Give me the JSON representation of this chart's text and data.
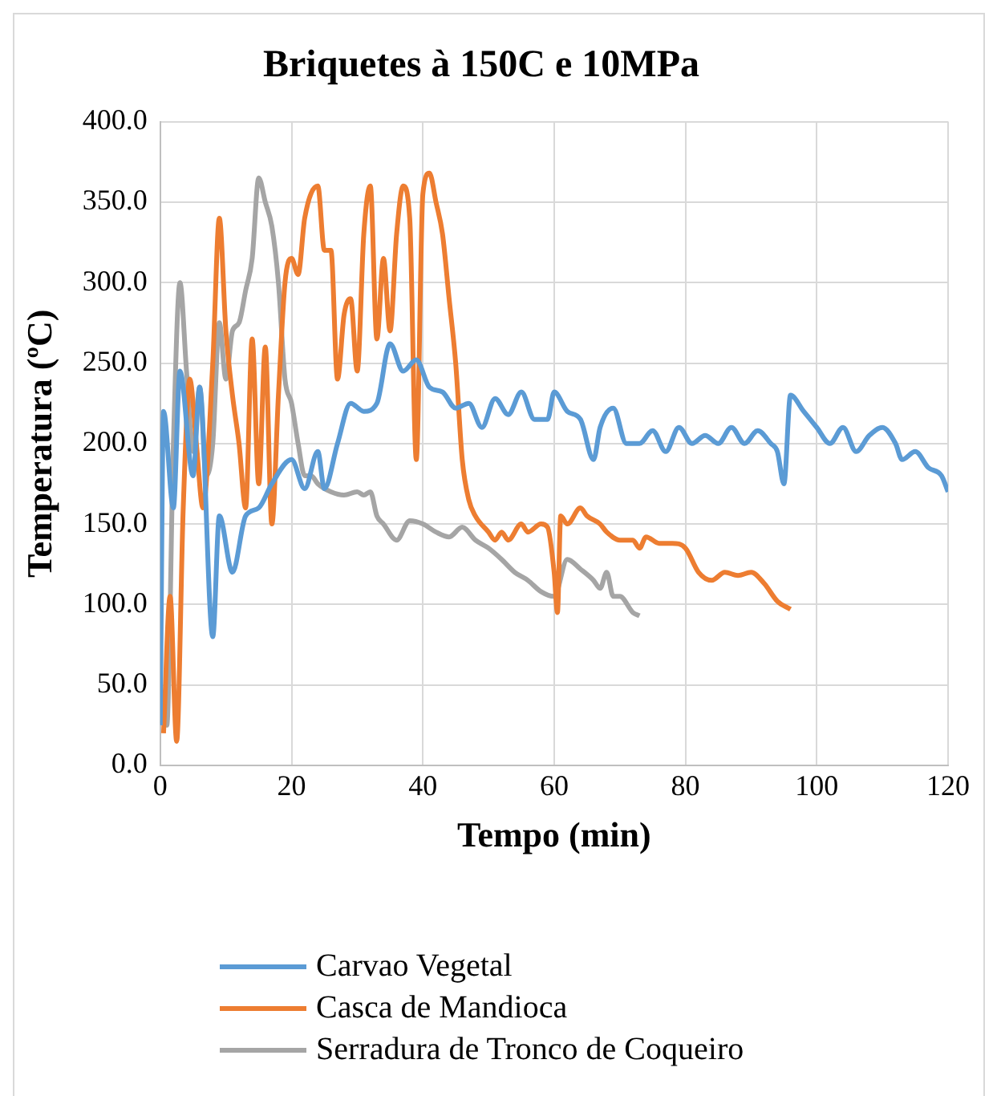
{
  "chart_data": {
    "type": "line",
    "title": "Briquetes à 150C e 10MPa",
    "xlabel": "Tempo (min)",
    "ylabel": "Temperatura (ºC)",
    "xlim": [
      0,
      120
    ],
    "xticks": [
      0,
      20,
      40,
      60,
      80,
      100,
      120
    ],
    "ylim": [
      0,
      400
    ],
    "yticks": [
      {
        "value": 0,
        "label": "0.0"
      },
      {
        "value": 50,
        "label": "50.0"
      },
      {
        "value": 100,
        "label": "100.0"
      },
      {
        "value": 150,
        "label": "150.0"
      },
      {
        "value": 200,
        "label": "200.0"
      },
      {
        "value": 250,
        "label": "250.0"
      },
      {
        "value": 300,
        "label": "300.0"
      },
      {
        "value": 350,
        "label": "350.0"
      },
      {
        "value": 400,
        "label": "400.0"
      }
    ],
    "grid": true,
    "legend": "bottom",
    "marker": "none",
    "line_style": "solid",
    "series": [
      {
        "name": "Carvao Vegetal",
        "color": "#5b9bd5",
        "x": [
          0,
          0.5,
          2,
          3,
          5,
          6,
          8,
          9,
          11,
          13,
          15,
          17,
          20,
          22,
          24,
          25,
          27,
          29,
          31,
          33,
          35,
          37,
          39,
          41,
          43,
          45,
          47,
          49,
          51,
          53,
          55,
          57,
          59,
          60,
          62,
          64,
          66,
          67,
          69,
          71,
          73,
          75,
          77,
          79,
          81,
          83,
          85,
          87,
          89,
          91,
          93,
          94,
          95,
          96,
          98,
          100,
          102,
          104,
          106,
          108,
          110,
          112,
          113,
          115,
          117,
          119,
          120
        ],
        "values": [
          25,
          220,
          160,
          245,
          180,
          235,
          80,
          155,
          120,
          155,
          160,
          175,
          190,
          172,
          195,
          172,
          200,
          225,
          220,
          225,
          262,
          245,
          252,
          235,
          232,
          222,
          225,
          210,
          228,
          218,
          232,
          215,
          215,
          232,
          220,
          215,
          190,
          210,
          222,
          200,
          200,
          208,
          195,
          210,
          200,
          205,
          200,
          210,
          200,
          208,
          200,
          195,
          175,
          230,
          220,
          210,
          200,
          210,
          195,
          205,
          210,
          200,
          190,
          195,
          185,
          180,
          170
        ]
      },
      {
        "name": "Casca de Mandioca",
        "color": "#ed7d31",
        "x": [
          0.5,
          1.5,
          2.5,
          3.5,
          4.5,
          5.5,
          6.5,
          8,
          9,
          10,
          11,
          12,
          13,
          14,
          15,
          16,
          17,
          18,
          19,
          20,
          21,
          22,
          24,
          25,
          26,
          27,
          28,
          29,
          30,
          31,
          32,
          33,
          34,
          35,
          36,
          37,
          38,
          39,
          40,
          41,
          42,
          43,
          44,
          45,
          46,
          47,
          48,
          50,
          51,
          52,
          53,
          55,
          56,
          58,
          59,
          60,
          60.5,
          61,
          62,
          64,
          65,
          67,
          68,
          70,
          72,
          73,
          74,
          76,
          78,
          80,
          82,
          84,
          86,
          88,
          90,
          92,
          94,
          96
        ],
        "values": [
          20,
          105,
          15,
          160,
          240,
          200,
          160,
          250,
          340,
          270,
          230,
          200,
          160,
          265,
          175,
          260,
          150,
          230,
          300,
          315,
          305,
          340,
          360,
          320,
          320,
          240,
          280,
          290,
          245,
          330,
          360,
          265,
          315,
          270,
          330,
          360,
          340,
          190,
          355,
          368,
          350,
          330,
          290,
          250,
          190,
          165,
          155,
          145,
          140,
          145,
          140,
          150,
          145,
          150,
          148,
          120,
          95,
          155,
          150,
          160,
          155,
          150,
          145,
          140,
          140,
          135,
          142,
          138,
          138,
          135,
          120,
          115,
          120,
          118,
          120,
          113,
          102,
          97
        ]
      },
      {
        "name": "Serradura de Tronco de Coqueiro",
        "color": "#a5a5a5",
        "x": [
          0,
          1,
          2,
          3,
          4,
          5,
          6,
          7,
          8,
          9,
          10,
          11,
          12,
          13,
          14,
          15,
          16,
          17,
          18,
          19,
          20,
          21,
          22,
          23,
          24,
          26,
          28,
          30,
          31,
          32,
          33,
          34,
          36,
          38,
          40,
          42,
          44,
          46,
          48,
          50,
          52,
          54,
          56,
          58,
          60,
          62,
          64,
          66,
          67,
          68,
          69,
          70,
          72,
          73
        ],
        "values": [
          28,
          25,
          200,
          300,
          245,
          195,
          235,
          180,
          200,
          275,
          240,
          270,
          275,
          295,
          315,
          365,
          350,
          335,
          300,
          240,
          225,
          200,
          180,
          180,
          175,
          170,
          168,
          170,
          168,
          170,
          155,
          150,
          140,
          152,
          150,
          145,
          142,
          148,
          140,
          135,
          128,
          120,
          115,
          108,
          105,
          128,
          122,
          115,
          110,
          120,
          105,
          105,
          95,
          93
        ]
      }
    ]
  }
}
